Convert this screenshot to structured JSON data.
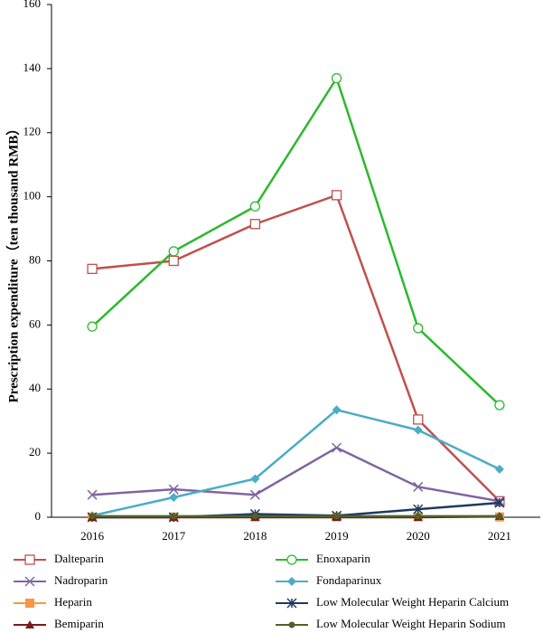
{
  "chart_data": {
    "type": "line",
    "y_label": "Prescription expenditure（ten thousand RMB）",
    "categories": [
      "2016",
      "2017",
      "2018",
      "2019",
      "2020",
      "2021"
    ],
    "ylim": [
      0,
      160
    ],
    "yticks": [
      0,
      20,
      40,
      60,
      80,
      100,
      120,
      140,
      160
    ],
    "grid": false,
    "legend": "bottom",
    "series": [
      {
        "name": "Dalteparin",
        "color": "#c0504d",
        "marker": "square-open",
        "values": [
          77.5,
          80,
          91.5,
          100.5,
          30.5,
          5
        ]
      },
      {
        "name": "Enoxaparin",
        "color": "#2db82d",
        "marker": "circle-open",
        "values": [
          59.5,
          83,
          97,
          137,
          59,
          35
        ]
      },
      {
        "name": "Nadroparin",
        "color": "#8064a2",
        "marker": "x",
        "values": [
          7,
          8.7,
          7,
          21.7,
          9.5,
          5
        ]
      },
      {
        "name": "Fondaparinux",
        "color": "#4bacc6",
        "marker": "diamond",
        "values": [
          0.5,
          6.2,
          12,
          33.5,
          27.2,
          15
        ]
      },
      {
        "name": "Heparin",
        "color": "#f79646",
        "marker": "square",
        "values": [
          0.1,
          0.1,
          0.1,
          0.1,
          0.1,
          0.1
        ]
      },
      {
        "name": "Low Molecular Weight Heparin Calcium",
        "color": "#1f3a5f",
        "marker": "asterisk",
        "values": [
          0,
          0,
          1,
          0.5,
          2.5,
          4.5
        ]
      },
      {
        "name": "Bemiparin",
        "color": "#7b1a1a",
        "marker": "triangle",
        "values": [
          0,
          0,
          0,
          0,
          0,
          0.3
        ]
      },
      {
        "name": "Low Molecular Weight Heparin Sodium",
        "color": "#4f6228",
        "marker": "dot",
        "values": [
          0.3,
          0.3,
          0.3,
          0.3,
          0.3,
          0.3
        ]
      }
    ]
  }
}
